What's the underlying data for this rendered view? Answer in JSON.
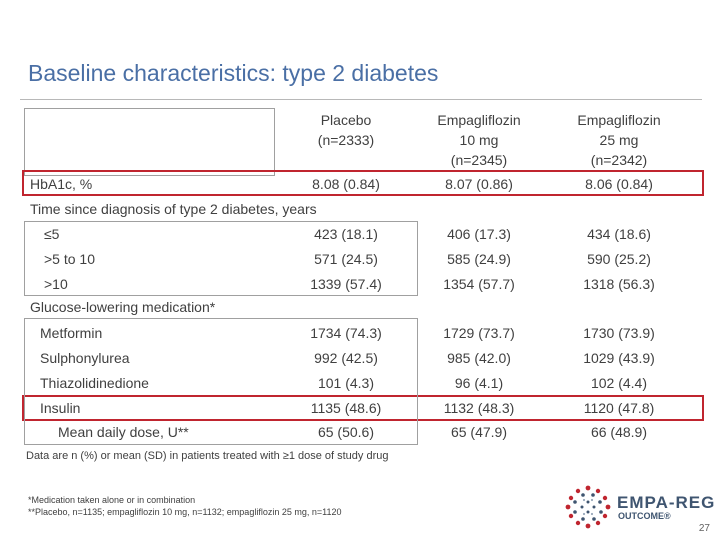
{
  "title": "Baseline characteristics: type 2 diabetes",
  "columns": [
    {
      "line1": "Placebo",
      "line2": "(n=2333)",
      "line3": ""
    },
    {
      "line1": "Empagliflozin",
      "line2": "10 mg",
      "line3": "(n=2345)"
    },
    {
      "line1": "Empagliflozin",
      "line2": "25 mg",
      "line3": "(n=2342)"
    }
  ],
  "rows": {
    "hba1c": {
      "label": "HbA1c, %",
      "v": [
        "8.08 (0.84)",
        "8.07 (0.86)",
        "8.06 (0.84)"
      ]
    },
    "time_header": "Time since diagnosis of type 2 diabetes, years",
    "le5": {
      "label": "≤5",
      "v": [
        "423 (18.1)",
        "406 (17.3)",
        "434 (18.6)"
      ]
    },
    "gt5": {
      "label": ">5 to 10",
      "v": [
        "571 (24.5)",
        "585 (24.9)",
        "590 (25.2)"
      ]
    },
    "gt10": {
      "label": ">10",
      "v": [
        "1339 (57.4)",
        "1354 (57.7)",
        "1318 (56.3)"
      ]
    },
    "gluc_header": "Glucose-lowering medication*",
    "metformin": {
      "label": "Metformin",
      "v": [
        "1734 (74.3)",
        "1729 (73.7)",
        "1730 (73.9)"
      ]
    },
    "sulph": {
      "label": "Sulphonylurea",
      "v": [
        "992 (42.5)",
        "985 (42.0)",
        "1029 (43.9)"
      ]
    },
    "thiaz": {
      "label": "Thiazolidinedione",
      "v": [
        "101 (4.3)",
        "96 (4.1)",
        "102 (4.4)"
      ]
    },
    "insulin": {
      "label": "Insulin",
      "v": [
        "1135 (48.6)",
        "1132 (48.3)",
        "1120 (47.8)"
      ]
    },
    "mean_dose": {
      "label": "Mean daily dose, U**",
      "v": [
        "65 (50.6)",
        "65 (47.9)",
        "66 (48.9)"
      ]
    }
  },
  "footnote_main": "Data are n (%) or mean (SD) in patients treated with ≥1 dose of study drug",
  "footnote_1": "*Medication taken alone or in combination",
  "footnote_2": "**Placebo, n=1135; empagliflozin 10 mg, n=1132; empagliflozin 25 mg, n=1120",
  "logo": {
    "main": "EMPA-REG",
    "sub": "OUTCOME®"
  },
  "page_number": "27",
  "colors": {
    "title": "#4a6fa5",
    "highlight": "#c0252f",
    "logo": "#3f5570"
  }
}
